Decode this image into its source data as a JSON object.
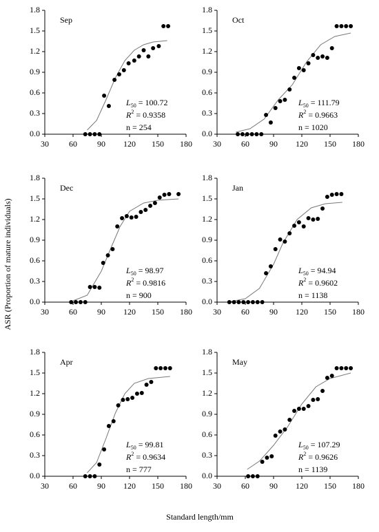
{
  "ylabel": "ASR (Proportion of mature individuals)",
  "xlabel": "Standard length/mm",
  "chart_data": [
    {
      "type": "scatter",
      "title": "Sep",
      "color": "#000000",
      "curve_color": "#777777",
      "x": [
        73,
        78,
        83,
        88,
        93,
        98,
        104,
        109,
        114,
        119,
        125,
        130,
        135,
        140,
        145,
        151,
        156,
        161
      ],
      "values": [
        0,
        0,
        0,
        0,
        0.56,
        0.41,
        0.79,
        0.87,
        0.93,
        1.03,
        1.07,
        1.13,
        1.22,
        1.13,
        1.25,
        1.28,
        1.57,
        1.57
      ],
      "curve": {
        "x": [
          75,
          85,
          95,
          105,
          115,
          125,
          135,
          145,
          160
        ],
        "values": [
          0.06,
          0.2,
          0.5,
          0.82,
          1.07,
          1.22,
          1.3,
          1.34,
          1.36
        ]
      },
      "annotations": [
        [
          "L",
          "50",
          " = 100.72"
        ],
        [
          "R",
          "2",
          " = 0.9358"
        ],
        [
          "n = 254"
        ]
      ],
      "xlim": [
        30,
        180
      ],
      "ylim": [
        0,
        1.8
      ],
      "xticks": [
        30,
        60,
        90,
        120,
        150,
        180
      ],
      "yticks": [
        {
          "value": 0,
          "label": "0.0"
        },
        0.3,
        0.6,
        0.9,
        1.2,
        1.5,
        1.8
      ]
    },
    {
      "type": "scatter",
      "title": "Oct",
      "color": "#000000",
      "curve_color": "#777777",
      "x": [
        52,
        57,
        62,
        67,
        72,
        77,
        82,
        87,
        92,
        97,
        102,
        107,
        112,
        117,
        122,
        127,
        132,
        137,
        142,
        147,
        152,
        157,
        162,
        167,
        172
      ],
      "values": [
        0,
        0,
        0,
        0,
        0,
        0,
        0.28,
        0.17,
        0.38,
        0.48,
        0.5,
        0.65,
        0.82,
        0.96,
        0.93,
        1.03,
        1.15,
        1.11,
        1.13,
        1.11,
        1.25,
        1.57,
        1.57,
        1.57,
        1.57
      ],
      "curve": {
        "x": [
          50,
          65,
          80,
          95,
          110,
          125,
          140,
          155,
          172
        ],
        "values": [
          0.03,
          0.08,
          0.22,
          0.5,
          0.72,
          1.05,
          1.3,
          1.42,
          1.47
        ]
      },
      "annotations": [
        [
          "L",
          "50",
          " = 111.79"
        ],
        [
          "R",
          "2",
          " = 0.9663"
        ],
        [
          "n = 1020"
        ]
      ],
      "xlim": [
        30,
        180
      ],
      "ylim": [
        0,
        1.8
      ],
      "xticks": [
        30,
        60,
        90,
        120,
        150,
        180
      ],
      "yticks": [
        {
          "value": 0,
          "label": "0.0"
        },
        0.3,
        0.6,
        0.9,
        1.2,
        1.5,
        1.8
      ]
    },
    {
      "type": "scatter",
      "title": "Dec",
      "color": "#000000",
      "curve_color": "#777777",
      "x": [
        58,
        63,
        68,
        73,
        78,
        83,
        88,
        92,
        97,
        102,
        107,
        112,
        117,
        122,
        127,
        132,
        137,
        142,
        147,
        152,
        157,
        162,
        172
      ],
      "values": [
        0,
        0,
        0,
        0,
        0.22,
        0.22,
        0.21,
        0.57,
        0.68,
        0.77,
        1.1,
        1.22,
        1.25,
        1.23,
        1.24,
        1.31,
        1.34,
        1.4,
        1.44,
        1.52,
        1.56,
        1.57,
        1.57
      ],
      "curve": {
        "x": [
          60,
          75,
          90,
          100,
          110,
          120,
          135,
          150,
          172
        ],
        "values": [
          0.02,
          0.1,
          0.45,
          0.78,
          1.1,
          1.32,
          1.44,
          1.48,
          1.5
        ]
      },
      "annotations": [
        [
          "L",
          "50",
          " = 98.97"
        ],
        [
          "R",
          "2",
          " = 0.9816"
        ],
        [
          "n = 900"
        ]
      ],
      "xlim": [
        30,
        180
      ],
      "ylim": [
        0,
        1.8
      ],
      "xticks": [
        30,
        60,
        90,
        120,
        150,
        180
      ],
      "yticks": [
        {
          "value": 0,
          "label": "0.0"
        },
        0.3,
        0.6,
        0.9,
        1.2,
        1.5,
        1.8
      ]
    },
    {
      "type": "scatter",
      "title": "Jan",
      "color": "#000000",
      "curve_color": "#777777",
      "x": [
        43,
        48,
        53,
        58,
        63,
        68,
        73,
        78,
        82,
        87,
        92,
        97,
        102,
        107,
        112,
        117,
        122,
        127,
        132,
        137,
        142,
        147,
        152,
        157,
        162
      ],
      "values": [
        0,
        0,
        0,
        0,
        0,
        0,
        0,
        0,
        0.42,
        0.52,
        0.77,
        0.91,
        0.88,
        1.0,
        1.11,
        1.16,
        1.1,
        1.22,
        1.2,
        1.21,
        1.36,
        1.53,
        1.56,
        1.57,
        1.57
      ],
      "curve": {
        "x": [
          45,
          60,
          75,
          90,
          100,
          115,
          130,
          145,
          163
        ],
        "values": [
          0.01,
          0.05,
          0.2,
          0.55,
          0.86,
          1.2,
          1.37,
          1.43,
          1.45
        ]
      },
      "annotations": [
        [
          "L",
          "50",
          " = 94.94"
        ],
        [
          "R",
          "2",
          " = 0.9602"
        ],
        [
          "n = 1138"
        ]
      ],
      "xlim": [
        30,
        180
      ],
      "ylim": [
        0,
        1.8
      ],
      "xticks": [
        30,
        60,
        90,
        120,
        150,
        180
      ],
      "yticks": [
        {
          "value": 0,
          "label": "0.0"
        },
        0.3,
        0.6,
        0.9,
        1.2,
        1.5,
        1.8
      ]
    },
    {
      "type": "scatter",
      "title": "Apr",
      "color": "#000000",
      "curve_color": "#777777",
      "x": [
        73,
        78,
        83,
        88,
        93,
        98,
        103,
        108,
        113,
        118,
        123,
        128,
        133,
        138,
        143,
        148,
        153,
        158,
        163
      ],
      "values": [
        0,
        0,
        0,
        0.17,
        0.39,
        0.73,
        0.8,
        1.03,
        1.11,
        1.12,
        1.14,
        1.2,
        1.21,
        1.33,
        1.37,
        1.57,
        1.57,
        1.57,
        1.57
      ],
      "curve": {
        "x": [
          75,
          85,
          95,
          105,
          115,
          125,
          140,
          163
        ],
        "values": [
          0.05,
          0.2,
          0.55,
          0.92,
          1.2,
          1.35,
          1.42,
          1.45
        ]
      },
      "annotations": [
        [
          "L",
          "50",
          " = 99.81"
        ],
        [
          "R",
          "2",
          " = 0.9634"
        ],
        [
          "n = 777"
        ]
      ],
      "xlim": [
        30,
        180
      ],
      "ylim": [
        0,
        1.8
      ],
      "xticks": [
        30,
        60,
        90,
        120,
        150,
        180
      ],
      "yticks": [
        {
          "value": 0,
          "label": "0.0"
        },
        0.3,
        0.6,
        0.9,
        1.2,
        1.5,
        1.8
      ]
    },
    {
      "type": "scatter",
      "title": "May",
      "color": "#000000",
      "curve_color": "#777777",
      "x": [
        63,
        68,
        73,
        78,
        83,
        88,
        92,
        97,
        102,
        107,
        112,
        117,
        122,
        127,
        132,
        137,
        142,
        147,
        152,
        157,
        162,
        167,
        172
      ],
      "values": [
        0,
        0,
        0,
        0.21,
        0.27,
        0.29,
        0.59,
        0.65,
        0.68,
        0.82,
        0.95,
        0.98,
        0.98,
        1.02,
        1.11,
        1.12,
        1.24,
        1.43,
        1.46,
        1.57,
        1.57,
        1.57,
        1.57
      ],
      "curve": {
        "x": [
          62,
          75,
          90,
          105,
          120,
          135,
          150,
          172
        ],
        "values": [
          0.1,
          0.22,
          0.45,
          0.72,
          1.05,
          1.3,
          1.42,
          1.5
        ]
      },
      "annotations": [
        [
          "L",
          "50",
          " = 107.29"
        ],
        [
          "R",
          "2",
          " = 0.9626"
        ],
        [
          "n = 1139"
        ]
      ],
      "xlim": [
        30,
        180
      ],
      "ylim": [
        0,
        1.8
      ],
      "xticks": [
        30,
        60,
        90,
        120,
        150,
        180
      ],
      "yticks": [
        {
          "value": 0,
          "label": "0.0"
        },
        0.3,
        0.6,
        0.9,
        1.2,
        1.5,
        1.8
      ]
    }
  ]
}
